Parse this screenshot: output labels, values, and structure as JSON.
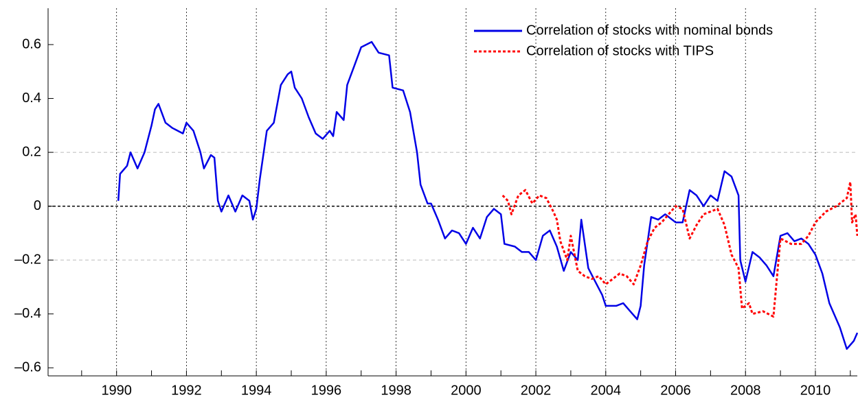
{
  "chart_data": {
    "type": "line",
    "xlim": [
      1988.04,
      2011.2
    ],
    "ylim": [
      -0.63,
      0.735
    ],
    "xticks": [
      1990,
      1992,
      1994,
      1996,
      1998,
      2000,
      2002,
      2004,
      2006,
      2008,
      2010
    ],
    "xminor_ticks": [
      1989,
      1991,
      1993,
      1995,
      1997,
      1999,
      2001,
      2003,
      2005,
      2007,
      2009,
      2011
    ],
    "yticks": [
      {
        "value": -0.6,
        "label": "–0.6"
      },
      {
        "value": -0.4,
        "label": "–0.4"
      },
      {
        "value": -0.2,
        "label": "–0.2"
      },
      0,
      0.2,
      0.4,
      0.6
    ],
    "vertical_grid": true,
    "zero_line": true,
    "reference_lines": [
      0.2,
      -0.2
    ],
    "legend_position": "top-right",
    "series": [
      {
        "name": "Correlation of stocks with nominal bonds",
        "color": "#0000e6",
        "style": "solid",
        "x": [
          1990.05,
          1990.1,
          1990.3,
          1990.4,
          1990.6,
          1990.8,
          1991.0,
          1991.1,
          1991.2,
          1991.4,
          1991.6,
          1991.9,
          1992.0,
          1992.2,
          1992.4,
          1992.5,
          1992.7,
          1992.8,
          1992.9,
          1993.0,
          1993.2,
          1993.4,
          1993.6,
          1993.8,
          1993.9,
          1994.0,
          1994.1,
          1994.3,
          1994.5,
          1994.7,
          1994.9,
          1995.0,
          1995.1,
          1995.3,
          1995.5,
          1995.7,
          1995.9,
          1996.1,
          1996.2,
          1996.3,
          1996.5,
          1996.6,
          1996.8,
          1997.0,
          1997.3,
          1997.5,
          1997.8,
          1997.9,
          1998.2,
          1998.4,
          1998.6,
          1998.7,
          1998.9,
          1999.0,
          1999.2,
          1999.4,
          1999.6,
          1999.8,
          2000.0,
          2000.2,
          2000.4,
          2000.6,
          2000.8,
          2001.0,
          2001.1,
          2001.4,
          2001.6,
          2001.8,
          2002.0,
          2002.2,
          2002.4,
          2002.6,
          2002.8,
          2003.0,
          2003.2,
          2003.3,
          2003.5,
          2003.7,
          2003.9,
          2004.0,
          2004.3,
          2004.5,
          2004.7,
          2004.9,
          2005.0,
          2005.1,
          2005.3,
          2005.5,
          2005.7,
          2006.0,
          2006.2,
          2006.4,
          2006.6,
          2006.8,
          2007.0,
          2007.2,
          2007.4,
          2007.6,
          2007.8,
          2007.85,
          2008.0,
          2008.2,
          2008.4,
          2008.6,
          2008.8,
          2009.0,
          2009.2,
          2009.4,
          2009.6,
          2009.8,
          2010.0,
          2010.2,
          2010.4,
          2010.6,
          2010.7,
          2010.9,
          2011.1,
          2011.2
        ],
        "values": [
          0.02,
          0.12,
          0.15,
          0.2,
          0.14,
          0.2,
          0.3,
          0.36,
          0.38,
          0.31,
          0.29,
          0.27,
          0.31,
          0.28,
          0.2,
          0.14,
          0.19,
          0.18,
          0.02,
          -0.02,
          0.04,
          -0.02,
          0.04,
          0.02,
          -0.05,
          -0.01,
          0.1,
          0.28,
          0.31,
          0.45,
          0.49,
          0.5,
          0.44,
          0.4,
          0.33,
          0.27,
          0.25,
          0.28,
          0.26,
          0.35,
          0.32,
          0.45,
          0.52,
          0.59,
          0.61,
          0.57,
          0.56,
          0.44,
          0.43,
          0.35,
          0.2,
          0.08,
          0.01,
          0.01,
          -0.05,
          -0.12,
          -0.09,
          -0.1,
          -0.14,
          -0.08,
          -0.12,
          -0.04,
          -0.01,
          -0.03,
          -0.14,
          -0.15,
          -0.17,
          -0.17,
          -0.2,
          -0.11,
          -0.09,
          -0.15,
          -0.24,
          -0.17,
          -0.2,
          -0.05,
          -0.23,
          -0.28,
          -0.33,
          -0.37,
          -0.37,
          -0.36,
          -0.39,
          -0.42,
          -0.37,
          -0.22,
          -0.04,
          -0.05,
          -0.03,
          -0.06,
          -0.06,
          0.06,
          0.04,
          0.0,
          0.04,
          0.02,
          0.13,
          0.11,
          0.04,
          -0.2,
          -0.28,
          -0.17,
          -0.19,
          -0.22,
          -0.26,
          -0.11,
          -0.1,
          -0.13,
          -0.12,
          -0.14,
          -0.18,
          -0.25,
          -0.36,
          -0.42,
          -0.45,
          -0.53,
          -0.5,
          -0.47
        ]
      },
      {
        "name": "Correlation of stocks with TIPS",
        "color": "#ff0000",
        "style": "dotted",
        "x": [
          2001.05,
          2001.2,
          2001.3,
          2001.5,
          2001.7,
          2001.9,
          2002.1,
          2002.3,
          2002.5,
          2002.6,
          2002.7,
          2002.9,
          2003.0,
          2003.2,
          2003.4,
          2003.6,
          2003.8,
          2004.0,
          2004.2,
          2004.4,
          2004.6,
          2004.8,
          2005.0,
          2005.2,
          2005.4,
          2005.6,
          2005.8,
          2006.0,
          2006.2,
          2006.4,
          2006.6,
          2006.8,
          2007.0,
          2007.2,
          2007.4,
          2007.6,
          2007.8,
          2007.9,
          2008.1,
          2008.2,
          2008.5,
          2008.8,
          2009.0,
          2009.3,
          2009.6,
          2009.8,
          2010.0,
          2010.3,
          2010.6,
          2010.9,
          2011.0,
          2011.05,
          2011.15,
          2011.2
        ],
        "values": [
          0.04,
          0.02,
          -0.03,
          0.04,
          0.06,
          0.01,
          0.04,
          0.03,
          -0.02,
          -0.05,
          -0.13,
          -0.2,
          -0.11,
          -0.24,
          -0.26,
          -0.27,
          -0.26,
          -0.29,
          -0.27,
          -0.25,
          -0.26,
          -0.29,
          -0.22,
          -0.13,
          -0.08,
          -0.06,
          -0.03,
          0.0,
          -0.01,
          -0.12,
          -0.07,
          -0.03,
          -0.02,
          -0.01,
          -0.07,
          -0.18,
          -0.23,
          -0.38,
          -0.36,
          -0.4,
          -0.39,
          -0.41,
          -0.12,
          -0.14,
          -0.14,
          -0.11,
          -0.06,
          -0.02,
          0.0,
          0.03,
          0.09,
          -0.06,
          -0.03,
          -0.11
        ]
      }
    ]
  }
}
